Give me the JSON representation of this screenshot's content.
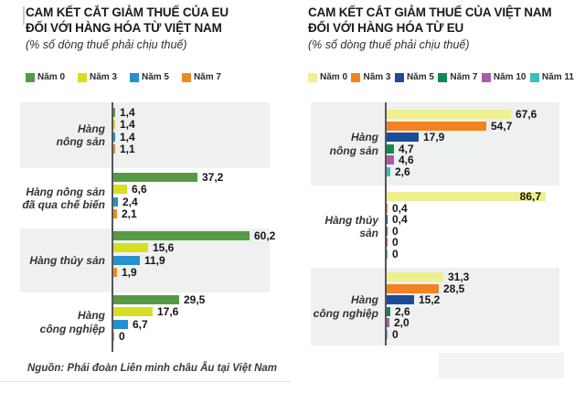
{
  "chart_data": [
    {
      "type": "bar",
      "orientation": "horizontal",
      "title": "CAM KẾT CẮT GIẢM THUẾ CỦA EU ĐỐI VỚI HÀNG HÓA TỪ VIỆT NAM",
      "title_lines": [
        "CAM KẾT CẮT GIẢM THUẾ CỦA EU",
        "ĐỐI VỚI HÀNG HÓA TỪ VIỆT NAM"
      ],
      "subtitle": "(% số dòng thuế phải chịu thuế)",
      "legend_position": "top",
      "grid": false,
      "xlim": [
        0,
        68
      ],
      "categories": [
        "Hàng nông sản",
        "Hàng nông sản đã qua chế biến",
        "Hàng thủy sản",
        "Hàng công nghiệp"
      ],
      "category_label_lines": [
        [
          "Hàng",
          "nông sản"
        ],
        [
          "Hàng nông sản",
          "đã qua chế biến"
        ],
        [
          "Hàng thủy sản"
        ],
        [
          "Hàng",
          "công nghiệp"
        ]
      ],
      "series": [
        {
          "name": "Năm 0",
          "color": "#569a46",
          "values": [
            1.4,
            37.2,
            60.2,
            29.5
          ],
          "value_labels": [
            "1,4",
            "37,2",
            "60,2",
            "29,5"
          ]
        },
        {
          "name": "Năm 3",
          "color": "#d7de23",
          "values": [
            1.4,
            6.6,
            15.6,
            17.6
          ],
          "value_labels": [
            "1,4",
            "6,6",
            "15,6",
            "17,6"
          ]
        },
        {
          "name": "Năm 5",
          "color": "#2591cf",
          "values": [
            1.4,
            2.4,
            11.9,
            6.7
          ],
          "value_labels": [
            "1,4",
            "2,4",
            "11,9",
            "6,7"
          ]
        },
        {
          "name": "Năm 7",
          "color": "#ef8b24",
          "values": [
            1.1,
            2.1,
            1.9,
            0
          ],
          "value_labels": [
            "1,1",
            "2,1",
            "1,9",
            "0"
          ]
        }
      ]
    },
    {
      "type": "bar",
      "orientation": "horizontal",
      "title": "CAM KẾT CẮT GIẢM THUẾ CỦA VIỆT NAM ĐỐI VỚI HÀNG HÓA TỪ EU",
      "title_lines": [
        "CAM KẾT CẮT GIẢM THUẾ CỦA VIỆT NAM",
        "ĐỐI VỚI HÀNG HÓA TỪ EU"
      ],
      "subtitle": "(% số dòng thuế phải chịu thuế)",
      "legend_position": "top",
      "grid": false,
      "xlim": [
        0,
        94
      ],
      "categories": [
        "Hàng nông sản",
        "Hàng thủy sản",
        "Hàng công nghiệp"
      ],
      "category_label_lines": [
        [
          "Hàng",
          "nông sản"
        ],
        [
          "Hàng thủy sản"
        ],
        [
          "Hàng",
          "công nghiệp"
        ]
      ],
      "series": [
        {
          "name": "Năm 0",
          "color": "#eef08f",
          "values": [
            67.6,
            86.7,
            31.3
          ],
          "value_labels": [
            "67,6",
            "86,7",
            "31,3"
          ]
        },
        {
          "name": "Năm 3",
          "color": "#f58220",
          "values": [
            54.7,
            0.4,
            28.5
          ],
          "value_labels": [
            "54,7",
            "0,4",
            "28,5"
          ]
        },
        {
          "name": "Năm 5",
          "color": "#1b4c9c",
          "values": [
            17.9,
            0.4,
            15.2
          ],
          "value_labels": [
            "17,9",
            "0,4",
            "15,2"
          ]
        },
        {
          "name": "Năm 7",
          "color": "#108a50",
          "values": [
            4.7,
            0,
            2.6
          ],
          "value_labels": [
            "4,7",
            "0",
            "2,6"
          ]
        },
        {
          "name": "Năm 10",
          "color": "#a85ba8",
          "values": [
            4.6,
            0,
            2.0
          ],
          "value_labels": [
            "4,6",
            "0",
            "2,0"
          ]
        },
        {
          "name": "Năm 11",
          "color": "#38bfbe",
          "values": [
            2.6,
            0,
            0
          ],
          "value_labels": [
            "2,6",
            "0",
            "0"
          ]
        }
      ]
    }
  ],
  "source": "Nguồn: Phái đoàn Liên minh châu Âu tại Việt Nam"
}
